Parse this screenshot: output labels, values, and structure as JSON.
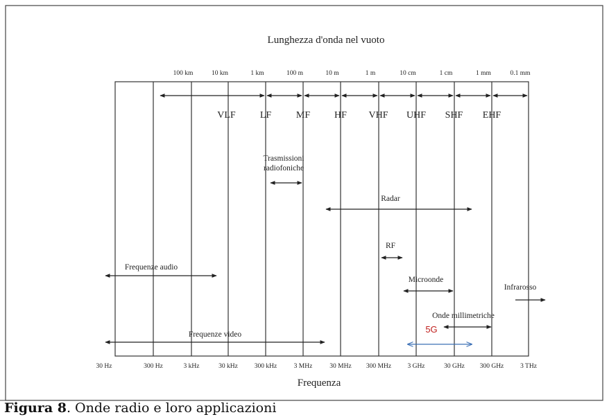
{
  "title": "Lunghezza d'onda nel vuoto",
  "x_axis_label": "Frequenza",
  "wavelength_labels": [
    "100 km",
    "10 km",
    "1 km",
    "100 m",
    "10 m",
    "1 m",
    "10 cm",
    "1 cm",
    "1 mm",
    "0.1 mm"
  ],
  "frequency_labels": [
    "30 Hz",
    "300 Hz",
    "3 kHz",
    "30 kHz",
    "300 kHz",
    "3 MHz",
    "30 MHz",
    "300 MHz",
    "3 GHz",
    "30 GHz",
    "300 GHz",
    "3 THz"
  ],
  "bands": [
    "VLF",
    "LF",
    "MF",
    "HF",
    "VHF",
    "UHF",
    "SHF",
    "EHF"
  ],
  "applications": [
    {
      "label": [
        "Trasmissioni",
        "radiofoniche"
      ]
    },
    {
      "label": [
        "Radar"
      ]
    },
    {
      "label": [
        "RF"
      ]
    },
    {
      "label": [
        "Frequenze audio"
      ]
    },
    {
      "label": [
        "Microonde"
      ]
    },
    {
      "label": [
        "Infrarosso"
      ]
    },
    {
      "label": [
        "Onde millimetriche"
      ]
    },
    {
      "label": [
        "5G"
      ]
    },
    {
      "label": [
        "Frequenze video"
      ]
    }
  ],
  "caption": {
    "number": "Figura 8",
    "text": ". Onde radio e loro applicazioni"
  }
}
